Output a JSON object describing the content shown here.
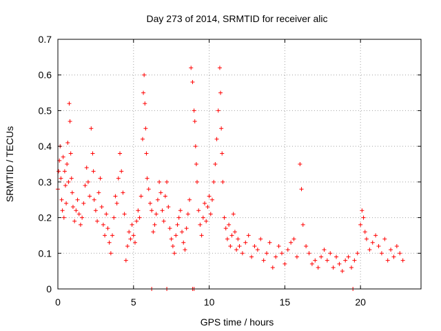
{
  "chart_data": {
    "type": "scatter",
    "title": "Day 273 of 2014, SRMTID for receiver alic",
    "xlabel": "GPS time / hours",
    "ylabel": "SRMTID / TECUs",
    "xlim": [
      0,
      24
    ],
    "ylim": [
      0,
      0.7
    ],
    "xticks": [
      0,
      5,
      10,
      15,
      20
    ],
    "xtick_labels": [
      "0",
      "5",
      "10",
      "15",
      "20"
    ],
    "yticks": [
      0,
      0.1,
      0.2,
      0.3,
      0.4,
      0.5,
      0.6,
      0.7
    ],
    "ytick_labels": [
      "0",
      "0.1",
      "0.2",
      "0.3",
      "0.4",
      "0.5",
      "0.6",
      "0.7"
    ],
    "grid": true,
    "marker": "+",
    "colors": {
      "series": "#ff0000",
      "grid": "#a0a0a0",
      "axis": "#000000"
    },
    "series": [
      {
        "name": "SRMTID",
        "x": [
          0.0,
          0.05,
          0.1,
          0.15,
          0.2,
          0.25,
          0.3,
          0.35,
          0.4,
          0.45,
          0.5,
          0.55,
          0.6,
          0.65,
          0.7,
          0.75,
          0.8,
          0.85,
          0.9,
          0.95,
          1.0,
          1.1,
          1.2,
          1.3,
          1.4,
          1.5,
          1.6,
          1.7,
          1.8,
          1.9,
          2.0,
          2.1,
          2.2,
          2.3,
          2.35,
          2.4,
          2.5,
          2.6,
          2.7,
          2.8,
          2.9,
          3.0,
          3.1,
          3.2,
          3.3,
          3.4,
          3.5,
          3.6,
          3.7,
          3.8,
          3.9,
          4.0,
          4.1,
          4.2,
          4.3,
          4.4,
          4.5,
          4.6,
          4.7,
          4.8,
          4.9,
          5.0,
          5.1,
          5.2,
          5.3,
          5.4,
          5.5,
          5.6,
          5.65,
          5.7,
          5.75,
          5.8,
          5.85,
          5.9,
          6.0,
          6.1,
          6.2,
          6.3,
          6.4,
          6.5,
          6.6,
          6.7,
          6.8,
          6.9,
          7.0,
          7.1,
          7.2,
          7.3,
          7.4,
          7.5,
          7.6,
          7.7,
          7.8,
          7.9,
          8.0,
          8.1,
          8.2,
          8.3,
          8.4,
          8.5,
          8.6,
          8.7,
          8.8,
          8.9,
          9.0,
          9.05,
          9.1,
          9.15,
          9.2,
          9.3,
          9.4,
          9.5,
          9.6,
          9.7,
          9.8,
          9.9,
          10.0,
          10.1,
          10.2,
          10.3,
          10.4,
          10.5,
          10.6,
          10.7,
          10.75,
          10.8,
          10.85,
          10.9,
          11.0,
          11.1,
          11.2,
          11.3,
          11.4,
          11.5,
          11.6,
          11.7,
          11.8,
          11.9,
          12.0,
          12.2,
          12.4,
          12.6,
          12.8,
          13.0,
          13.2,
          13.4,
          13.6,
          13.8,
          14.0,
          14.2,
          14.4,
          14.6,
          14.8,
          15.0,
          15.2,
          15.4,
          15.6,
          15.8,
          16.0,
          16.1,
          16.2,
          16.4,
          16.6,
          16.8,
          17.0,
          17.2,
          17.4,
          17.6,
          17.8,
          18.0,
          18.2,
          18.4,
          18.6,
          18.8,
          19.0,
          19.2,
          19.4,
          19.6,
          19.8,
          20.0,
          20.1,
          20.2,
          20.3,
          20.4,
          20.6,
          20.8,
          21.0,
          21.2,
          21.4,
          21.6,
          21.8,
          22.0,
          22.2,
          22.4,
          22.6,
          22.8,
          6.2,
          7.2,
          8.9,
          9.0,
          19.5
        ],
        "y": [
          0.28,
          0.33,
          0.36,
          0.4,
          0.31,
          0.25,
          0.22,
          0.37,
          0.2,
          0.33,
          0.29,
          0.24,
          0.35,
          0.41,
          0.3,
          0.52,
          0.47,
          0.38,
          0.31,
          0.27,
          0.23,
          0.19,
          0.22,
          0.25,
          0.21,
          0.18,
          0.2,
          0.24,
          0.29,
          0.34,
          0.3,
          0.26,
          0.45,
          0.38,
          0.33,
          0.25,
          0.22,
          0.19,
          0.27,
          0.31,
          0.23,
          0.18,
          0.15,
          0.21,
          0.17,
          0.13,
          0.1,
          0.15,
          0.2,
          0.26,
          0.24,
          0.31,
          0.38,
          0.33,
          0.27,
          0.21,
          0.08,
          0.12,
          0.16,
          0.14,
          0.18,
          0.15,
          0.13,
          0.19,
          0.22,
          0.2,
          0.26,
          0.42,
          0.55,
          0.6,
          0.52,
          0.45,
          0.38,
          0.31,
          0.28,
          0.24,
          0.22,
          0.16,
          0.18,
          0.21,
          0.25,
          0.3,
          0.27,
          0.22,
          0.19,
          0.26,
          0.3,
          0.23,
          0.17,
          0.14,
          0.12,
          0.1,
          0.15,
          0.18,
          0.2,
          0.22,
          0.16,
          0.13,
          0.11,
          0.17,
          0.21,
          0.25,
          0.62,
          0.58,
          0.5,
          0.47,
          0.4,
          0.35,
          0.3,
          0.22,
          0.18,
          0.15,
          0.2,
          0.24,
          0.19,
          0.23,
          0.26,
          0.21,
          0.25,
          0.3,
          0.35,
          0.42,
          0.5,
          0.62,
          0.55,
          0.45,
          0.38,
          0.3,
          0.2,
          0.17,
          0.14,
          0.18,
          0.12,
          0.15,
          0.21,
          0.16,
          0.11,
          0.14,
          0.12,
          0.1,
          0.13,
          0.15,
          0.09,
          0.12,
          0.11,
          0.14,
          0.08,
          0.1,
          0.13,
          0.06,
          0.09,
          0.12,
          0.1,
          0.07,
          0.11,
          0.13,
          0.14,
          0.09,
          0.35,
          0.28,
          0.18,
          0.12,
          0.1,
          0.07,
          0.08,
          0.06,
          0.09,
          0.11,
          0.08,
          0.1,
          0.06,
          0.09,
          0.07,
          0.05,
          0.08,
          0.09,
          0.06,
          0.08,
          0.1,
          0.18,
          0.22,
          0.2,
          0.16,
          0.14,
          0.11,
          0.13,
          0.15,
          0.12,
          0.1,
          0.14,
          0.08,
          0.11,
          0.09,
          0.12,
          0.1,
          0.08,
          0.0,
          0.0,
          0.0,
          0.0,
          0.0
        ]
      }
    ]
  }
}
